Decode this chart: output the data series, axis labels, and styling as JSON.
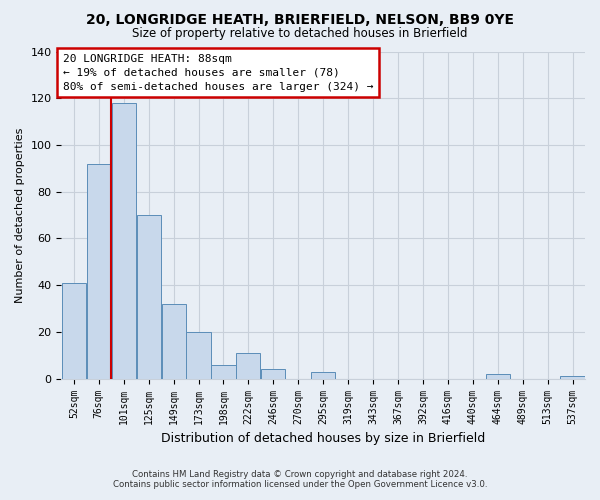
{
  "title1": "20, LONGRIDGE HEATH, BRIERFIELD, NELSON, BB9 0YE",
  "title2": "Size of property relative to detached houses in Brierfield",
  "xlabel": "Distribution of detached houses by size in Brierfield",
  "ylabel": "Number of detached properties",
  "bar_labels": [
    "52sqm",
    "76sqm",
    "101sqm",
    "125sqm",
    "149sqm",
    "173sqm",
    "198sqm",
    "222sqm",
    "246sqm",
    "270sqm",
    "295sqm",
    "319sqm",
    "343sqm",
    "367sqm",
    "392sqm",
    "416sqm",
    "440sqm",
    "464sqm",
    "489sqm",
    "513sqm",
    "537sqm"
  ],
  "bar_values": [
    41,
    92,
    118,
    70,
    32,
    20,
    6,
    11,
    4,
    0,
    3,
    0,
    0,
    0,
    0,
    0,
    0,
    2,
    0,
    0,
    1
  ],
  "bar_color": "#c8d8eb",
  "bar_edge_color": "#5b8db8",
  "ylim": [
    0,
    140
  ],
  "yticks": [
    0,
    20,
    40,
    60,
    80,
    100,
    120,
    140
  ],
  "annotation_title": "20 LONGRIDGE HEATH: 88sqm",
  "annotation_line1": "← 19% of detached houses are smaller (78)",
  "annotation_line2": "80% of semi-detached houses are larger (324) →",
  "annotation_box_color": "#ffffff",
  "annotation_box_edge_color": "#cc0000",
  "property_line_color": "#cc0000",
  "footnote1": "Contains HM Land Registry data © Crown copyright and database right 2024.",
  "footnote2": "Contains public sector information licensed under the Open Government Licence v3.0.",
  "bg_color": "#e8eef5",
  "grid_color": "#c8d0da",
  "spine_color": "#c8d0da"
}
